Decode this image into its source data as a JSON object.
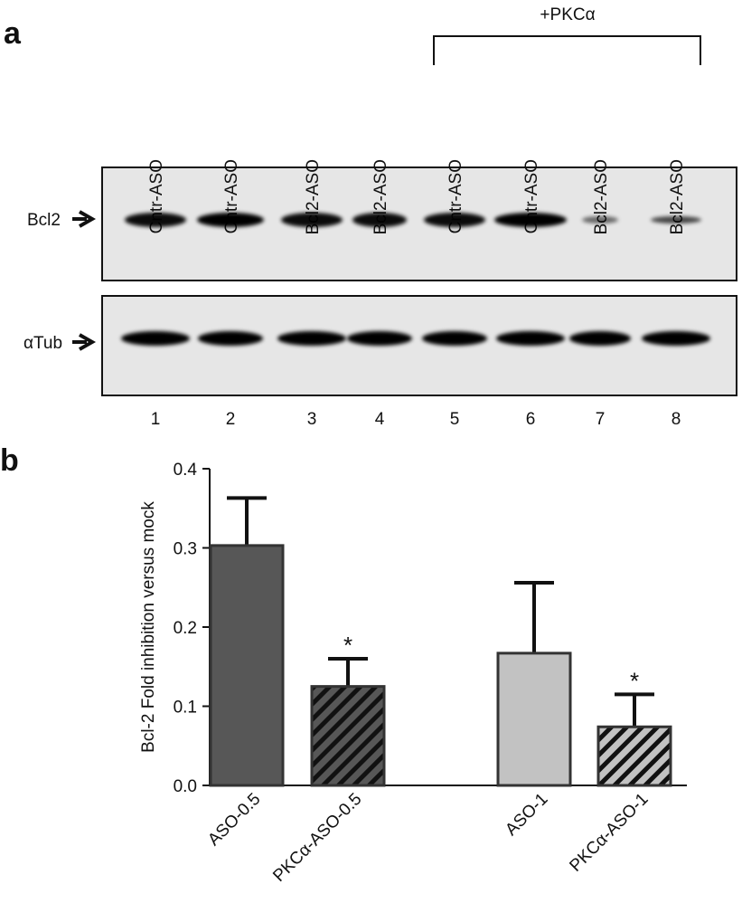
{
  "panel_a": {
    "label": "a",
    "bracket_label": "+PKCα",
    "lanes": [
      "Cntr-ASO",
      "Cntr-ASO",
      "Bcl2-ASO",
      "Bcl2-ASO",
      "Cntr-ASO",
      "Cntr-ASO",
      "Bcl2-ASO",
      "Bcl2-ASO"
    ],
    "lane_numbers": [
      "1",
      "2",
      "3",
      "4",
      "5",
      "6",
      "7",
      "8"
    ],
    "rows": [
      "Bcl2",
      "αTub"
    ]
  },
  "chart_data": {
    "type": "bar",
    "panel_label": "b",
    "ylabel": "Bcl-2 Fold inhibition versus mock",
    "categories": [
      "ASO-0.5",
      "PKCα-ASO-0.5",
      "ASO-1",
      "PKCα-ASO-1"
    ],
    "values": [
      0.303,
      0.125,
      0.167,
      0.074
    ],
    "errors": [
      0.06,
      0.035,
      0.089,
      0.041
    ],
    "significance": [
      null,
      "*",
      null,
      "*"
    ],
    "colors": [
      "#575757",
      "#575757",
      "#c2c2c2",
      "#c2c2c2"
    ],
    "hatch": [
      false,
      true,
      false,
      true
    ],
    "ylim": [
      0,
      0.4
    ],
    "yticks": [
      {
        "value": 0,
        "label": "0.0"
      },
      0.1,
      0.2,
      0.3,
      0.4
    ],
    "grid": false
  }
}
